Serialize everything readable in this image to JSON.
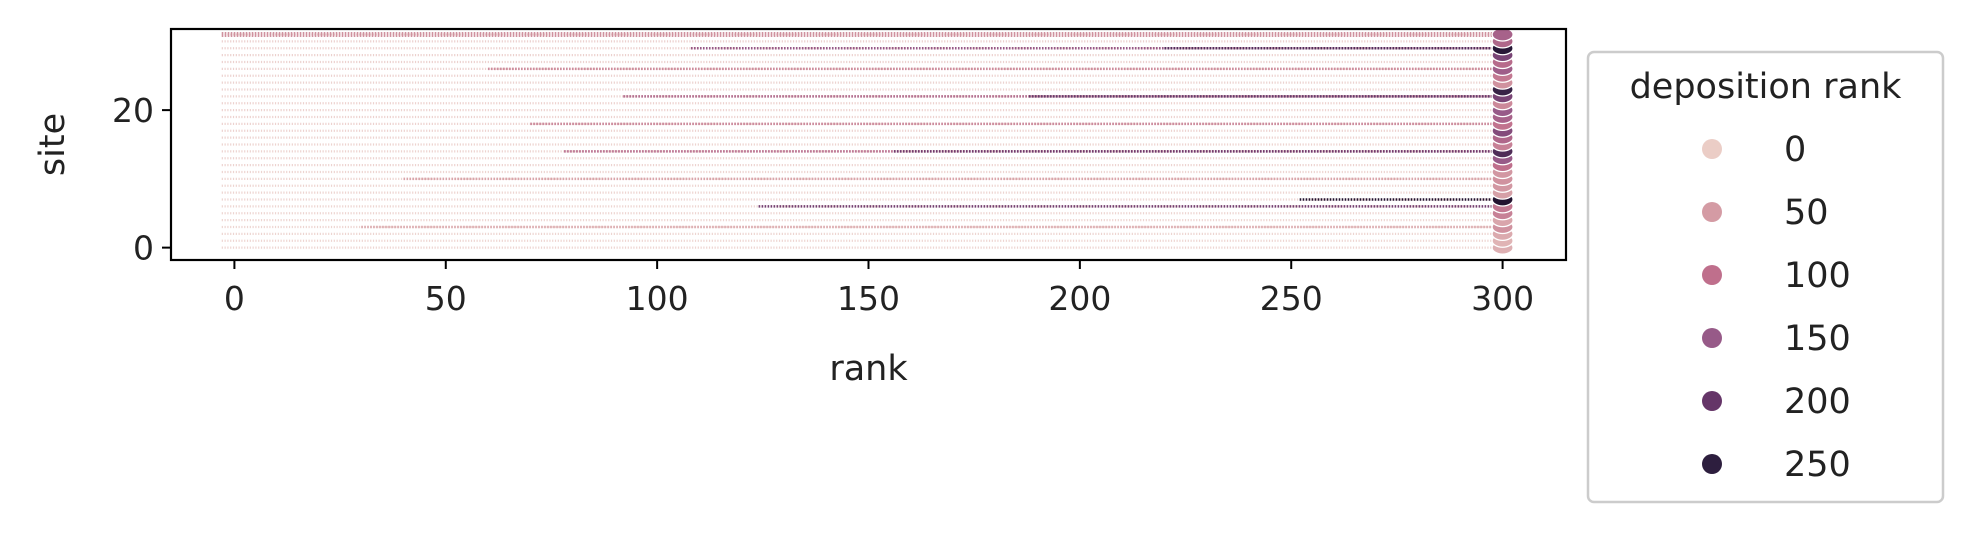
{
  "chart_data": {
    "type": "scatter",
    "title": "",
    "xlabel": "rank",
    "ylabel": "site",
    "xlim": [
      -15,
      315
    ],
    "ylim": [
      -1.8,
      31.8
    ],
    "xticks": [
      0,
      50,
      100,
      150,
      200,
      250,
      300
    ],
    "xtick_labels": [
      "0",
      "50",
      "100",
      "150",
      "200",
      "250",
      "300"
    ],
    "yticks": [
      0,
      20
    ],
    "ytick_labels": [
      "0",
      "20"
    ],
    "grid": false,
    "legend": {
      "title": "deposition rank",
      "placement": "outside-right",
      "entries": [
        {
          "label": "0",
          "value": 0,
          "color": "#ebcdc6"
        },
        {
          "label": "50",
          "value": 50,
          "color": "#d49ba4"
        },
        {
          "label": "100",
          "value": 100,
          "color": "#bf6f8c"
        },
        {
          "label": "150",
          "value": 150,
          "color": "#975a88"
        },
        {
          "label": "200",
          "value": 200,
          "color": "#653568"
        },
        {
          "label": "250",
          "value": 250,
          "color": "#2d1e3e"
        }
      ]
    },
    "hue_range": [
      0,
      300
    ],
    "series_description": "rank × site grid; hue = deposition rank",
    "sites": [
      0,
      1,
      2,
      3,
      4,
      5,
      6,
      7,
      8,
      9,
      10,
      11,
      12,
      13,
      14,
      15,
      16,
      17,
      18,
      19,
      20,
      21,
      22,
      23,
      24,
      25,
      26,
      27,
      28,
      29,
      30,
      31
    ],
    "rank_range": [
      -3,
      299
    ],
    "lines": [
      {
        "site": 31,
        "from_rank": -3,
        "to_rank": 299,
        "deposition_rank": 60
      },
      {
        "site": 29,
        "from_rank": 108,
        "to_rank": 299,
        "deposition_rank": 150
      },
      {
        "site": 29,
        "from_rank": 220,
        "to_rank": 299,
        "deposition_rank": 215
      },
      {
        "site": 26,
        "from_rank": 60,
        "to_rank": 299,
        "deposition_rank": 70
      },
      {
        "site": 22,
        "from_rank": 92,
        "to_rank": 299,
        "deposition_rank": 120
      },
      {
        "site": 22,
        "from_rank": 188,
        "to_rank": 299,
        "deposition_rank": 205
      },
      {
        "site": 18,
        "from_rank": 70,
        "to_rank": 299,
        "deposition_rank": 75
      },
      {
        "site": 14,
        "from_rank": 78,
        "to_rank": 299,
        "deposition_rank": 110
      },
      {
        "site": 14,
        "from_rank": 156,
        "to_rank": 299,
        "deposition_rank": 190
      },
      {
        "site": 10,
        "from_rank": 40,
        "to_rank": 299,
        "deposition_rank": 40
      },
      {
        "site": 6,
        "from_rank": 124,
        "to_rank": 299,
        "deposition_rank": 185
      },
      {
        "site": 7,
        "from_rank": 252,
        "to_rank": 299,
        "deposition_rank": 290
      },
      {
        "site": 3,
        "from_rank": 30,
        "to_rank": 299,
        "deposition_rank": 35
      }
    ],
    "final_column": {
      "rank": 300,
      "deposition_ranks": [
        30,
        25,
        35,
        60,
        40,
        80,
        90,
        290,
        45,
        55,
        60,
        55,
        100,
        150,
        220,
        80,
        120,
        170,
        95,
        130,
        150,
        70,
        180,
        240,
        60,
        90,
        140,
        110,
        180,
        270,
        120,
        130
      ]
    }
  }
}
